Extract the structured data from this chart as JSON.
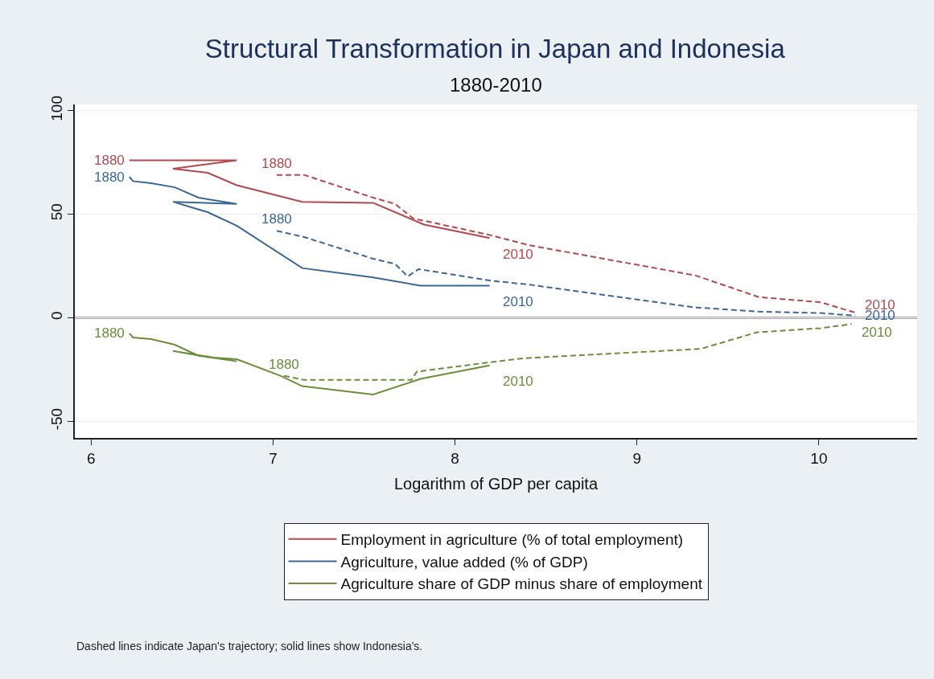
{
  "chart_data": {
    "type": "line",
    "title": "Structural Transformation in Japan and Indonesia",
    "subtitle": "1880-2010",
    "xlabel": "Logarithm of GDP per capita",
    "xlim": [
      5.91,
      10.54
    ],
    "xticks": [
      6,
      7,
      8,
      9,
      10
    ],
    "ylim": [
      -58,
      103
    ],
    "yticks": [
      -50,
      0,
      50,
      100
    ],
    "grid": "y",
    "legend": "bottom",
    "ref_lines": [
      {
        "axis": "y",
        "value": 0,
        "color": "#555555"
      }
    ],
    "series": [
      {
        "name": "Employment in agriculture (% of total employment)",
        "color": "#b5484f",
        "line_style": "solid",
        "x": [
          6.21,
          6.8,
          6.45,
          6.64,
          6.8,
          7.16,
          7.55,
          7.83,
          8.19
        ],
        "values": [
          76,
          76,
          72,
          70,
          64,
          56,
          55.5,
          45,
          38.5
        ]
      },
      {
        "name": "Agriculture, value added (% of GDP)",
        "color": "#3a6796",
        "line_style": "solid",
        "x": [
          6.21,
          6.23,
          6.33,
          6.46,
          6.59,
          6.8,
          6.45,
          6.64,
          6.8,
          7.16,
          7.55,
          7.81,
          8.19
        ],
        "values": [
          68,
          66,
          65,
          63,
          58,
          55,
          56,
          51,
          44.5,
          24,
          19.5,
          15.5,
          15.5
        ]
      },
      {
        "name": "Agriculture share of GDP minus share of employment",
        "color": "#6a8e3a",
        "line_style": "solid",
        "x": [
          6.21,
          6.23,
          6.33,
          6.46,
          6.59,
          6.8,
          6.45,
          6.64,
          6.8,
          7.04,
          7.16,
          7.55,
          7.81,
          8.19
        ],
        "values": [
          -7.5,
          -9.5,
          -10.3,
          -13,
          -18.3,
          -21,
          -16,
          -19,
          -20,
          -28,
          -33,
          -37,
          -29.5,
          -23
        ]
      },
      {
        "color": "#b5484f",
        "line_style": "dashed",
        "x": [
          7.02,
          7.17,
          7.55,
          7.67,
          7.77,
          8.19,
          8.41,
          9.32,
          9.67,
          10.01,
          10.2
        ],
        "values": [
          69,
          69,
          58,
          55,
          48,
          40,
          35,
          20.5,
          10,
          7.5,
          2.5
        ]
      },
      {
        "color": "#3a6796",
        "line_style": "dashed",
        "x": [
          7.02,
          7.17,
          7.55,
          7.67,
          7.74,
          7.8,
          8.19,
          8.41,
          9.32,
          9.67,
          10.01,
          10.2
        ],
        "values": [
          42,
          39,
          28.5,
          26,
          20,
          23.5,
          18,
          16,
          5,
          3,
          2.3,
          1
        ]
      },
      {
        "color": "#6a8e3a",
        "line_style": "dashed",
        "x": [
          7.06,
          7.17,
          7.76,
          7.79,
          8.19,
          8.38,
          9.35,
          9.66,
          10.01,
          10.18
        ],
        "values": [
          -28,
          -30,
          -30,
          -26,
          -21.5,
          -19.5,
          -15,
          -7,
          -5,
          -3
        ]
      }
    ],
    "annotations": [
      {
        "text": "1880",
        "x": 6.21,
        "y": 76
      },
      {
        "text": "1880",
        "x": 6.21,
        "y": 68
      },
      {
        "text": "1880",
        "x": 6.21,
        "y": -7.5
      },
      {
        "text": "1880",
        "x": 7.02,
        "y": 69
      },
      {
        "text": "1880",
        "x": 7.02,
        "y": 42
      },
      {
        "text": "1880",
        "x": 7.06,
        "y": -28
      },
      {
        "text": "2010",
        "x": 8.19,
        "y": 38.5
      },
      {
        "text": "2010",
        "x": 8.19,
        "y": 15.5
      },
      {
        "text": "2010",
        "x": 8.19,
        "y": -23
      },
      {
        "text": "2010",
        "x": 10.2,
        "y": 2.5
      },
      {
        "text": "2010",
        "x": 10.2,
        "y": 1
      },
      {
        "text": "2010",
        "x": 10.18,
        "y": -3
      },
      "Dashed lines indicate Japan's trajectory; solid lines show Indonesia's."
    ]
  }
}
